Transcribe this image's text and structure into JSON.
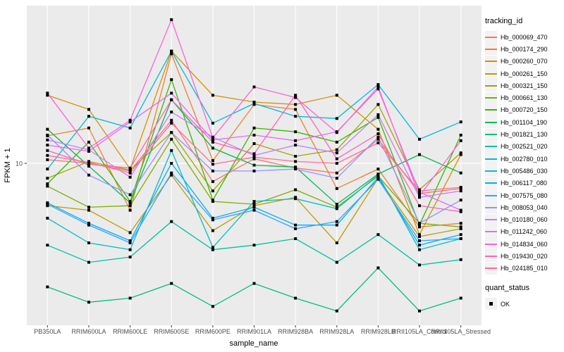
{
  "figure": {
    "y_axis": {
      "title": "FPKM + 1",
      "tick_label": "10",
      "tick_value": 10
    },
    "x_axis": {
      "title": "sample_name"
    },
    "legend": {
      "tracking_title": "tracking_id",
      "quant_title": "quant_status",
      "quant_ok_label": "OK"
    },
    "colors": {
      "panel_background": "#EBEBEB",
      "grid": "#FFFFFF",
      "tick_text": "#4D4D4D",
      "axis_text": "#000000",
      "marker": "#000000",
      "legend_key_background": "#F2F2F2"
    }
  },
  "chart_data": {
    "type": "line",
    "title": "",
    "xlabel": "sample_name",
    "ylabel": "FPKM + 1",
    "yscale": "log10",
    "ylim": [
      1.69,
      55
    ],
    "y_ticks": [
      10
    ],
    "grid": "major-white-on-grey",
    "legend_position": "right",
    "marker": "black-square",
    "x_categories": [
      "PB350LA",
      "RRIM600LA",
      "RRIM600LE",
      "RRIM600SE",
      "RRIM600PE",
      "RRIM901LA",
      "RRIM928BA",
      "RRIM928LA",
      "RRIM928LB",
      "RRII105LA_Control",
      "RRII105LA_Stressed"
    ],
    "series": [
      {
        "name": "Hb_000069_470",
        "color": "#F8766D",
        "values": [
          10.4,
          10.0,
          9.2,
          16.0,
          8.2,
          10.5,
          9.5,
          9.0,
          13.0,
          7.2,
          7.6
        ]
      },
      {
        "name": "Hb_000174_290",
        "color": "#EA8331",
        "values": [
          13.5,
          14.7,
          6.0,
          33.0,
          10.3,
          19.0,
          18.0,
          7.6,
          9.4,
          5.0,
          5.2
        ]
      },
      {
        "name": "Hb_000260_070",
        "color": "#D89000",
        "values": [
          21.0,
          18.0,
          9.4,
          34.0,
          21.0,
          19.5,
          19.0,
          21.0,
          14.5,
          4.6,
          11.0
        ]
      },
      {
        "name": "Hb_000261_150",
        "color": "#C09B00",
        "values": [
          6.3,
          6.0,
          4.7,
          8.8,
          4.8,
          6.3,
          6.9,
          4.2,
          8.5,
          4.5,
          4.9
        ]
      },
      {
        "name": "Hb_000321_150",
        "color": "#A3A500",
        "values": [
          8.5,
          10.2,
          9.3,
          14.0,
          7.4,
          12.4,
          10.8,
          11.6,
          19.0,
          7.5,
          11.2
        ]
      },
      {
        "name": "Hb_000661_130",
        "color": "#7CAE00",
        "values": [
          7.8,
          6.2,
          6.3,
          13.0,
          6.6,
          6.4,
          7.5,
          6.2,
          8.7,
          5.2,
          5.0
        ]
      },
      {
        "name": "Hb_000720_150",
        "color": "#39B600",
        "values": [
          8.0,
          12.6,
          6.6,
          24.9,
          6.7,
          14.7,
          14.1,
          12.6,
          16.5,
          5.1,
          13.6
        ]
      },
      {
        "name": "Hb_001104_190",
        "color": "#00BB4E",
        "values": [
          14.5,
          9.7,
          6.5,
          20.0,
          11.8,
          9.8,
          9.6,
          6.4,
          8.9,
          11.0,
          9.0
        ]
      },
      {
        "name": "Hb_001821_130",
        "color": "#00BF7D",
        "values": [
          2.6,
          2.2,
          2.3,
          2.7,
          2.1,
          2.7,
          2.3,
          2.0,
          3.2,
          2.0,
          2.3
        ]
      },
      {
        "name": "Hb_002521_020",
        "color": "#00C1A3",
        "values": [
          4.1,
          3.4,
          3.6,
          5.3,
          3.9,
          4.1,
          4.4,
          3.4,
          4.6,
          3.3,
          3.5
        ]
      },
      {
        "name": "Hb_002780_010",
        "color": "#00BFC4",
        "values": [
          5.5,
          4.2,
          3.9,
          11.5,
          4.0,
          6.6,
          6.8,
          6.1,
          8.8,
          3.9,
          4.4
        ]
      },
      {
        "name": "Hb_005486_030",
        "color": "#00BAE0",
        "values": [
          9.4,
          16.7,
          14.7,
          34.0,
          15.5,
          19.2,
          16.7,
          16.3,
          23.6,
          13.0,
          15.7
        ]
      },
      {
        "name": "Hb_006117_080",
        "color": "#00B0F6",
        "values": [
          6.5,
          5.2,
          4.3,
          10.0,
          5.5,
          6.2,
          5.1,
          5.1,
          8.6,
          4.1,
          4.6
        ]
      },
      {
        "name": "Hb_007575_080",
        "color": "#35A2FF",
        "values": [
          6.4,
          5.1,
          4.2,
          9.0,
          5.4,
          6.0,
          4.9,
          5.3,
          8.4,
          4.3,
          4.4
        ]
      },
      {
        "name": "Hb_008053_040",
        "color": "#9590FF",
        "values": [
          13.6,
          8.8,
          7.1,
          14.0,
          9.2,
          9.2,
          9.4,
          8.5,
          13.3,
          5.2,
          6.7
        ]
      },
      {
        "name": "Hb_010180_060",
        "color": "#C77CFF",
        "values": [
          12.9,
          11.6,
          8.6,
          17.5,
          13.3,
          10.9,
          12.2,
          11.2,
          17.0,
          6.9,
          7.4
        ]
      },
      {
        "name": "Hb_011242_060",
        "color": "#E76BF3",
        "values": [
          12.2,
          11.4,
          15.7,
          21.5,
          12.9,
          13.6,
          12.8,
          14.1,
          22.5,
          7.3,
          6.0
        ]
      },
      {
        "name": "Hb_014834_060",
        "color": "#FA62DB",
        "values": [
          21.5,
          11.8,
          16.0,
          47.9,
          13.2,
          23.0,
          20.5,
          14.0,
          23.0,
          7.0,
          12.8
        ]
      },
      {
        "name": "Hb_019430_020",
        "color": "#FF62BC",
        "values": [
          11.5,
          9.9,
          9.5,
          20.0,
          12.6,
          11.1,
          21.0,
          10.5,
          13.8,
          6.3,
          5.9
        ]
      },
      {
        "name": "Hb_024185_010",
        "color": "#FF6A98",
        "values": [
          10.9,
          10.1,
          9.0,
          15.5,
          9.9,
          10.7,
          10.2,
          10.0,
          12.5,
          7.4,
          7.7
        ]
      }
    ]
  }
}
